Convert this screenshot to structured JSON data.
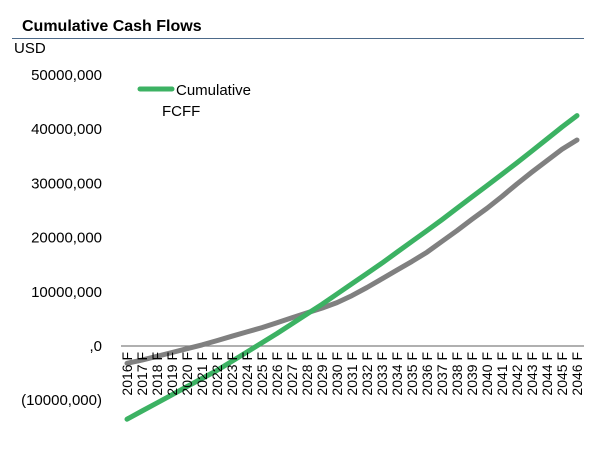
{
  "chart_data": {
    "type": "line",
    "title": "Cumulative Cash Flows",
    "unit_label": "USD",
    "ylim": [
      -10000000,
      50000000
    ],
    "y_ticks": [
      {
        "value": 50000000,
        "label": "50000,000"
      },
      {
        "value": 40000000,
        "label": "40000,000"
      },
      {
        "value": 30000000,
        "label": "30000,000"
      },
      {
        "value": 20000000,
        "label": "20000,000"
      },
      {
        "value": 10000000,
        "label": "10000,000"
      },
      {
        "value": 0,
        "label": ",0"
      },
      {
        "value": -10000000,
        "label": "(10000,000)"
      }
    ],
    "categories": [
      "2016 F",
      "2017 F",
      "2018 F",
      "2019 F",
      "2020 F",
      "2021 F",
      "2022 F",
      "2023 F",
      "2024 F",
      "2025 F",
      "2026 F",
      "2027 F",
      "2028 F",
      "2029 F",
      "2030 F",
      "2031 F",
      "2032 F",
      "2033 F",
      "2034 F",
      "2035 F",
      "2036 F",
      "2037 F",
      "2038 F",
      "2039 F",
      "2040 F",
      "2041 F",
      "2042 F",
      "2043 F",
      "2044 F",
      "2045 F",
      "2046 F"
    ],
    "legend_position": "top-left",
    "grid": false,
    "series": [
      {
        "name": "Cumulative FCFF",
        "color": "#3cb263",
        "values": [
          -13500000,
          -12000000,
          -10500000,
          -9000000,
          -7500000,
          -6000000,
          -4500000,
          -2800000,
          -1100000,
          600000,
          2300000,
          4100000,
          5900000,
          7700000,
          9600000,
          11500000,
          13400000,
          15300000,
          17300000,
          19300000,
          21300000,
          23300000,
          25400000,
          27500000,
          29600000,
          31700000,
          33800000,
          36000000,
          38200000,
          40400000,
          42500000
        ]
      },
      {
        "name": "",
        "color": "#808080",
        "values": [
          -3200000,
          -2600000,
          -1900000,
          -1200000,
          -500000,
          200000,
          1000000,
          1800000,
          2600000,
          3400000,
          4300000,
          5200000,
          6100000,
          7000000,
          8000000,
          9300000,
          10800000,
          12400000,
          14000000,
          15600000,
          17300000,
          19300000,
          21300000,
          23400000,
          25400000,
          27600000,
          29900000,
          32100000,
          34200000,
          36300000,
          38000000
        ]
      }
    ]
  },
  "colors": {
    "axis": "#808080",
    "title_rule": "#4d6a8a"
  }
}
